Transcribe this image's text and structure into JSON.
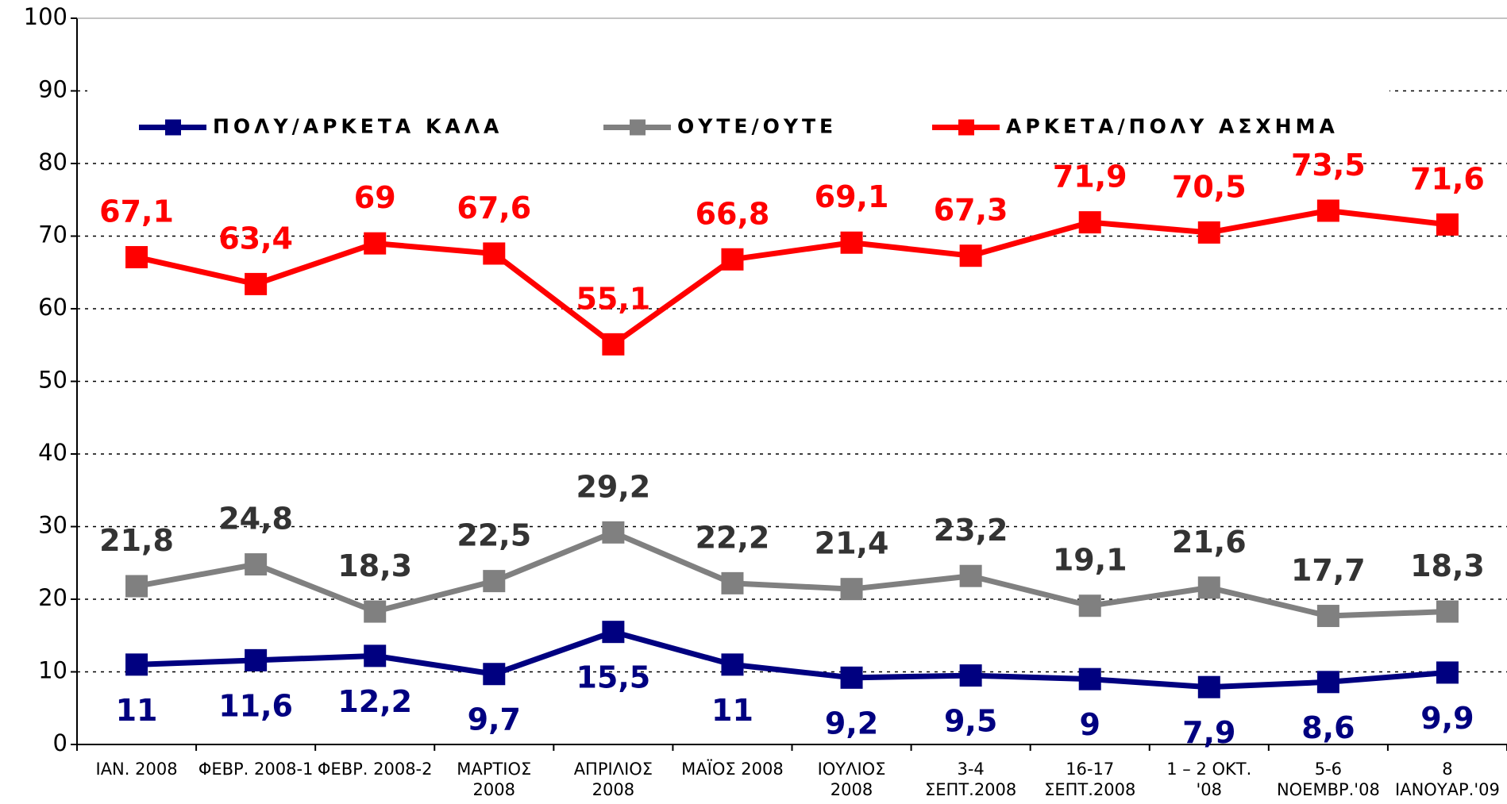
{
  "chart_data": {
    "type": "line",
    "categories": [
      "ΙΑΝ. 2008",
      "ΦΕΒΡ. 2008-1",
      "ΦΕΒΡ. 2008-2",
      "ΜΑΡΤΙΟΣ\n2008",
      "ΑΠΡΙΛΙΟΣ\n2008",
      "ΜΑΪΟΣ 2008",
      "ΙΟΥΛΙΟΣ\n2008",
      "3-4\nΣΕΠΤ.2008",
      "16-17\nΣΕΠΤ.2008",
      "1 – 2 ΟΚΤ.\n'08",
      "5-6\nΝΟΕΜΒΡ.'08",
      "8\nΙΑΝΟΥΑΡ.'09"
    ],
    "series": [
      {
        "name": "ΠΟΛΥ/ΑΡΚΕΤΑ ΚΑΛΑ",
        "color": "#000080",
        "values": [
          11,
          11.6,
          12.2,
          9.7,
          15.5,
          11,
          9.2,
          9.5,
          9,
          7.9,
          8.6,
          9.9
        ],
        "value_labels": [
          "11",
          "11,6",
          "12,2",
          "9,7",
          "15,5",
          "11",
          "9,2",
          "9,5",
          "9",
          "7,9",
          "8,6",
          "9,9"
        ]
      },
      {
        "name": "ΟΥΤΕ/ΟΥΤΕ",
        "color": "#808080",
        "values": [
          21.8,
          24.8,
          18.3,
          22.5,
          29.2,
          22.2,
          21.4,
          23.2,
          19.1,
          21.6,
          17.7,
          18.3
        ],
        "value_labels": [
          "21,8",
          "24,8",
          "18,3",
          "22,5",
          "29,2",
          "22,2",
          "21,4",
          "23,2",
          "19,1",
          "21,6",
          "17,7",
          "18,3"
        ]
      },
      {
        "name": "ΑΡΚΕΤΑ/ΠΟΛΥ ΑΣΧΗΜΑ",
        "color": "#ff0000",
        "values": [
          67.1,
          63.4,
          69,
          67.6,
          55.1,
          66.8,
          69.1,
          67.3,
          71.9,
          70.5,
          73.5,
          71.6
        ],
        "value_labels": [
          "67,1",
          "63,4",
          "69",
          "67,6",
          "55,1",
          "66,8",
          "69,1",
          "67,3",
          "71,9",
          "70,5",
          "73,5",
          "71,6"
        ]
      }
    ],
    "ylim": [
      0,
      100
    ],
    "yticks": [
      0,
      10,
      20,
      30,
      40,
      50,
      60,
      70,
      80,
      90,
      100
    ],
    "grid": true,
    "legend": "top"
  }
}
